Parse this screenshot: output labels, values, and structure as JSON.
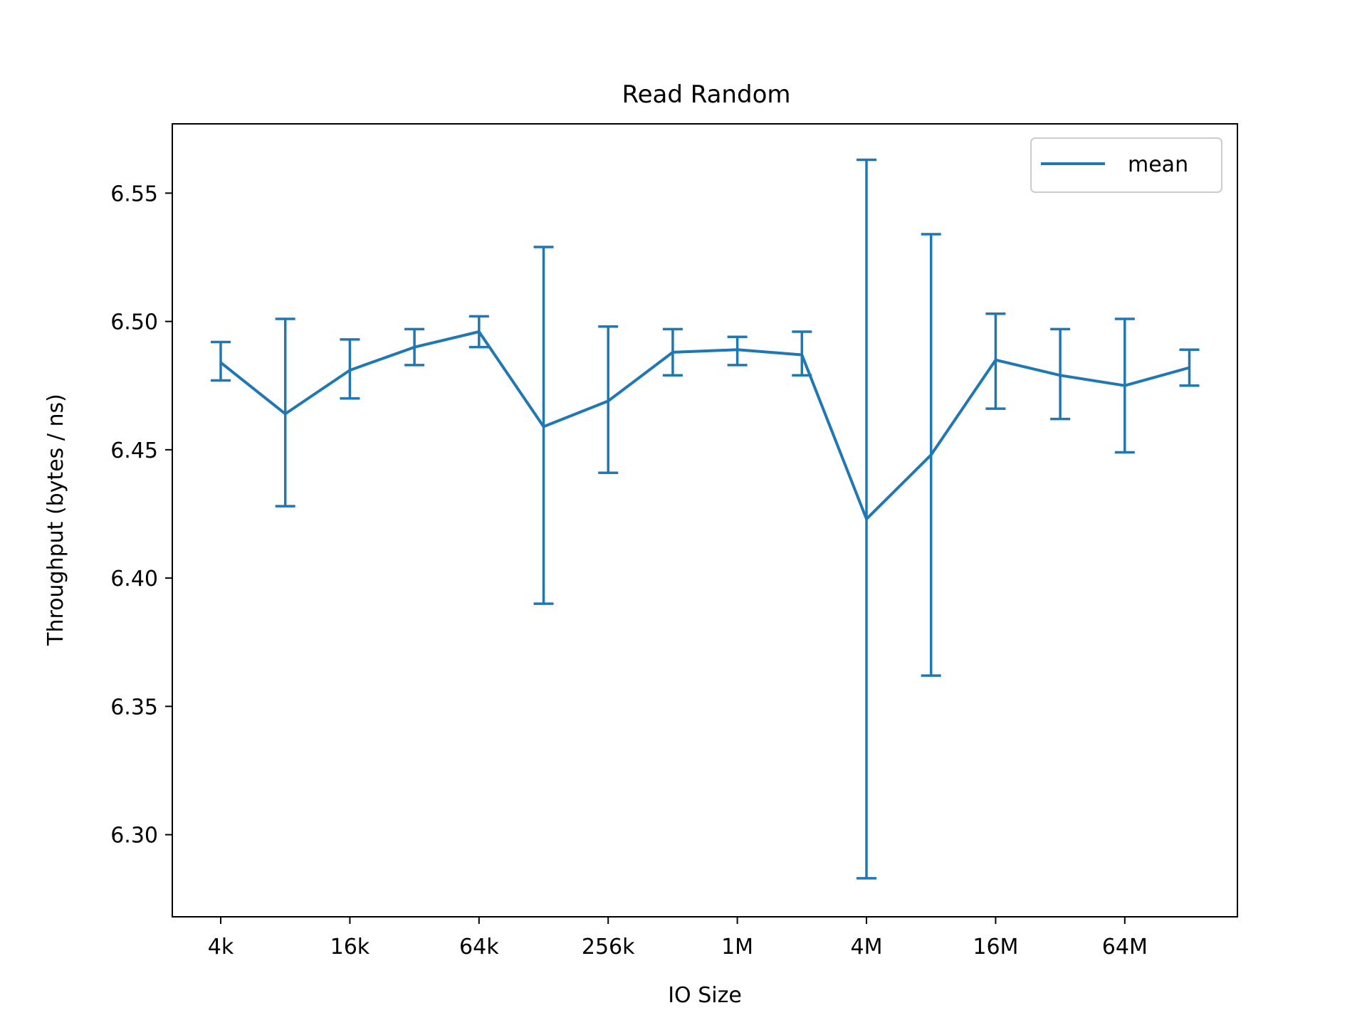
{
  "chart_data": {
    "type": "line",
    "title": "Read Random",
    "xlabel": "IO Size",
    "ylabel": "Throughput (bytes / ns)",
    "xscale": "log2",
    "x": [
      "4k",
      "8k",
      "16k",
      "32k",
      "64k",
      "128k",
      "256k",
      "512k",
      "1M",
      "2M",
      "4M",
      "8M",
      "16M",
      "32M",
      "64M",
      "128M"
    ],
    "xticks": [
      "4k",
      "16k",
      "64k",
      "256k",
      "1M",
      "4M",
      "16M",
      "64M"
    ],
    "ylim": [
      6.268,
      6.577
    ],
    "yticks": [
      "6.30",
      "6.35",
      "6.40",
      "6.45",
      "6.50",
      "6.55"
    ],
    "grid": false,
    "legend_position": "top-right",
    "series": [
      {
        "name": "mean",
        "color": "#1f77b4",
        "values": [
          6.484,
          6.464,
          6.481,
          6.49,
          6.496,
          6.459,
          6.469,
          6.488,
          6.489,
          6.487,
          6.423,
          6.448,
          6.485,
          6.479,
          6.475,
          6.482
        ],
        "error_low": [
          6.477,
          6.428,
          6.47,
          6.483,
          6.49,
          6.39,
          6.441,
          6.479,
          6.483,
          6.479,
          6.283,
          6.362,
          6.466,
          6.462,
          6.449,
          6.475
        ],
        "error_high": [
          6.492,
          6.501,
          6.493,
          6.497,
          6.502,
          6.529,
          6.498,
          6.497,
          6.494,
          6.496,
          6.563,
          6.534,
          6.503,
          6.497,
          6.501,
          6.489
        ]
      }
    ]
  }
}
